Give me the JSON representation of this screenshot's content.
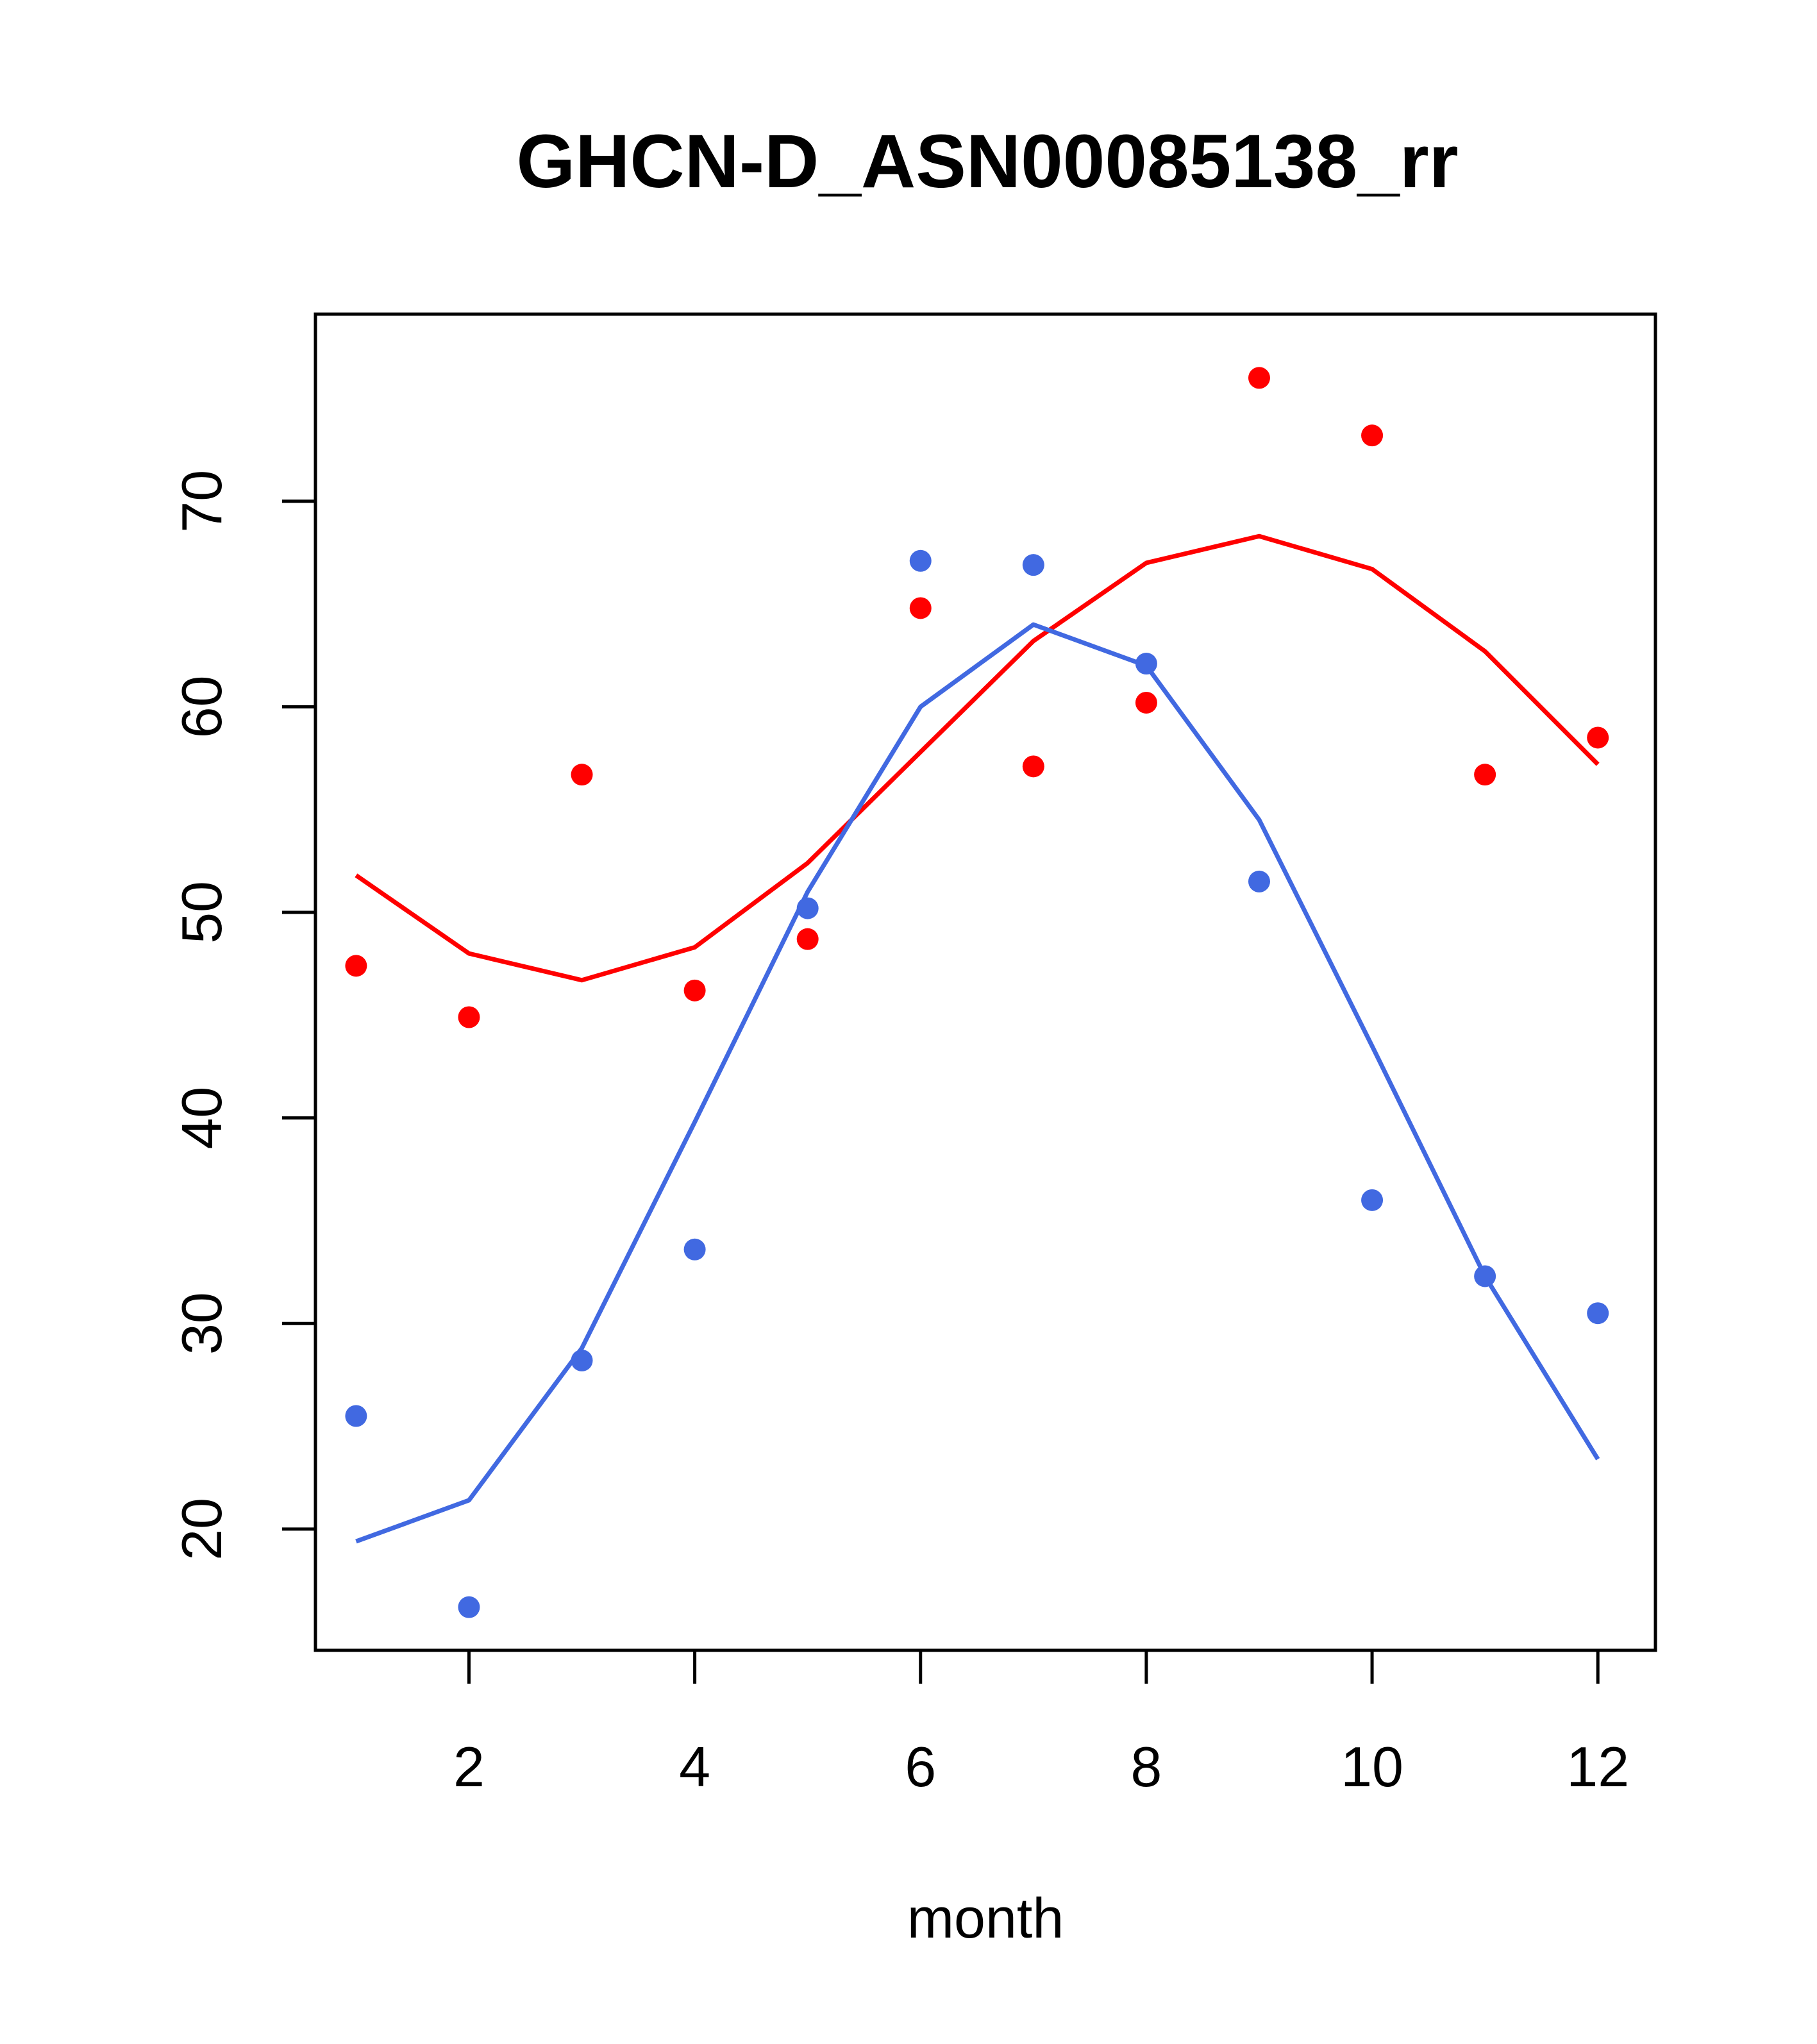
{
  "chart_data": {
    "type": "scatter",
    "title": "GHCN-D_ASN00085138_rr",
    "xlabel": "month",
    "ylabel": "",
    "xlim": [
      0.64,
      12.51
    ],
    "ylim": [
      14.1,
      79.1
    ],
    "xticks": [
      2,
      4,
      6,
      8,
      10,
      12
    ],
    "yticks": [
      20,
      30,
      40,
      50,
      60,
      70
    ],
    "grid": false,
    "legend": "none",
    "series": [
      {
        "color": "#ff0000",
        "points": {
          "x": [
            1,
            2,
            3,
            4,
            5,
            6,
            7,
            8,
            9,
            10,
            11,
            12
          ],
          "y": [
            47.4,
            44.9,
            56.7,
            46.2,
            48.7,
            64.8,
            57.1,
            60.2,
            76.0,
            73.2,
            56.7,
            58.5
          ]
        },
        "line": {
          "x": [
            1,
            2,
            3,
            4,
            5,
            6,
            7,
            8,
            9,
            10,
            11,
            12
          ],
          "y": [
            51.8,
            48.0,
            46.7,
            48.3,
            52.4,
            57.8,
            63.2,
            67.0,
            68.3,
            66.7,
            62.7,
            57.2
          ]
        }
      },
      {
        "color": "#4169e1",
        "points": {
          "x": [
            1,
            2,
            3,
            4,
            5,
            6,
            7,
            8,
            9,
            10,
            11,
            12
          ],
          "y": [
            25.5,
            16.2,
            28.2,
            33.6,
            50.2,
            67.1,
            66.9,
            62.1,
            51.5,
            36.0,
            32.3,
            30.5
          ]
        },
        "line": {
          "x": [
            1,
            2,
            3,
            4,
            5,
            6,
            7,
            8,
            9,
            10,
            11,
            12
          ],
          "y": [
            19.4,
            21.4,
            28.8,
            39.8,
            51.0,
            60.0,
            64.0,
            62.0,
            54.5,
            43.5,
            32.3,
            23.4
          ]
        }
      }
    ]
  }
}
